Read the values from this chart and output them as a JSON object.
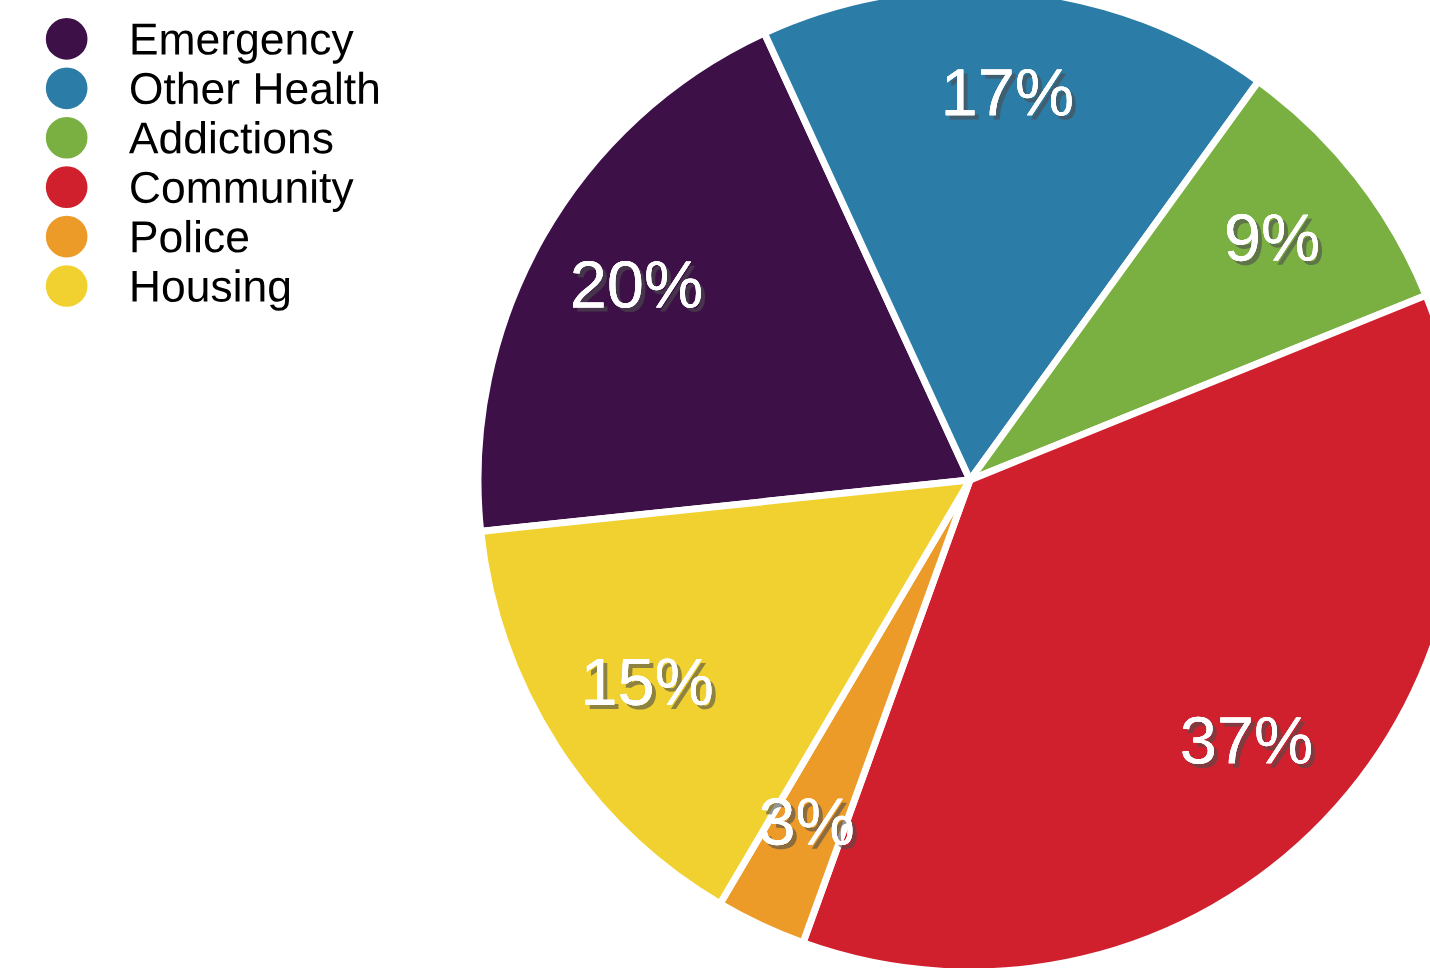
{
  "chart_data": {
    "type": "pie",
    "categories": [
      "Emergency",
      "Other Health",
      "Addictions",
      "Community",
      "Police",
      "Housing"
    ],
    "values": [
      20,
      17,
      9,
      37,
      3,
      15
    ],
    "colors": [
      "#3d1048",
      "#2b7ca6",
      "#7ab041",
      "#d0202d",
      "#ec9a28",
      "#f0d12f"
    ],
    "value_labels": [
      "20%",
      "17%",
      "9%",
      "37%",
      "3%",
      "15%"
    ],
    "legend": "top left"
  }
}
